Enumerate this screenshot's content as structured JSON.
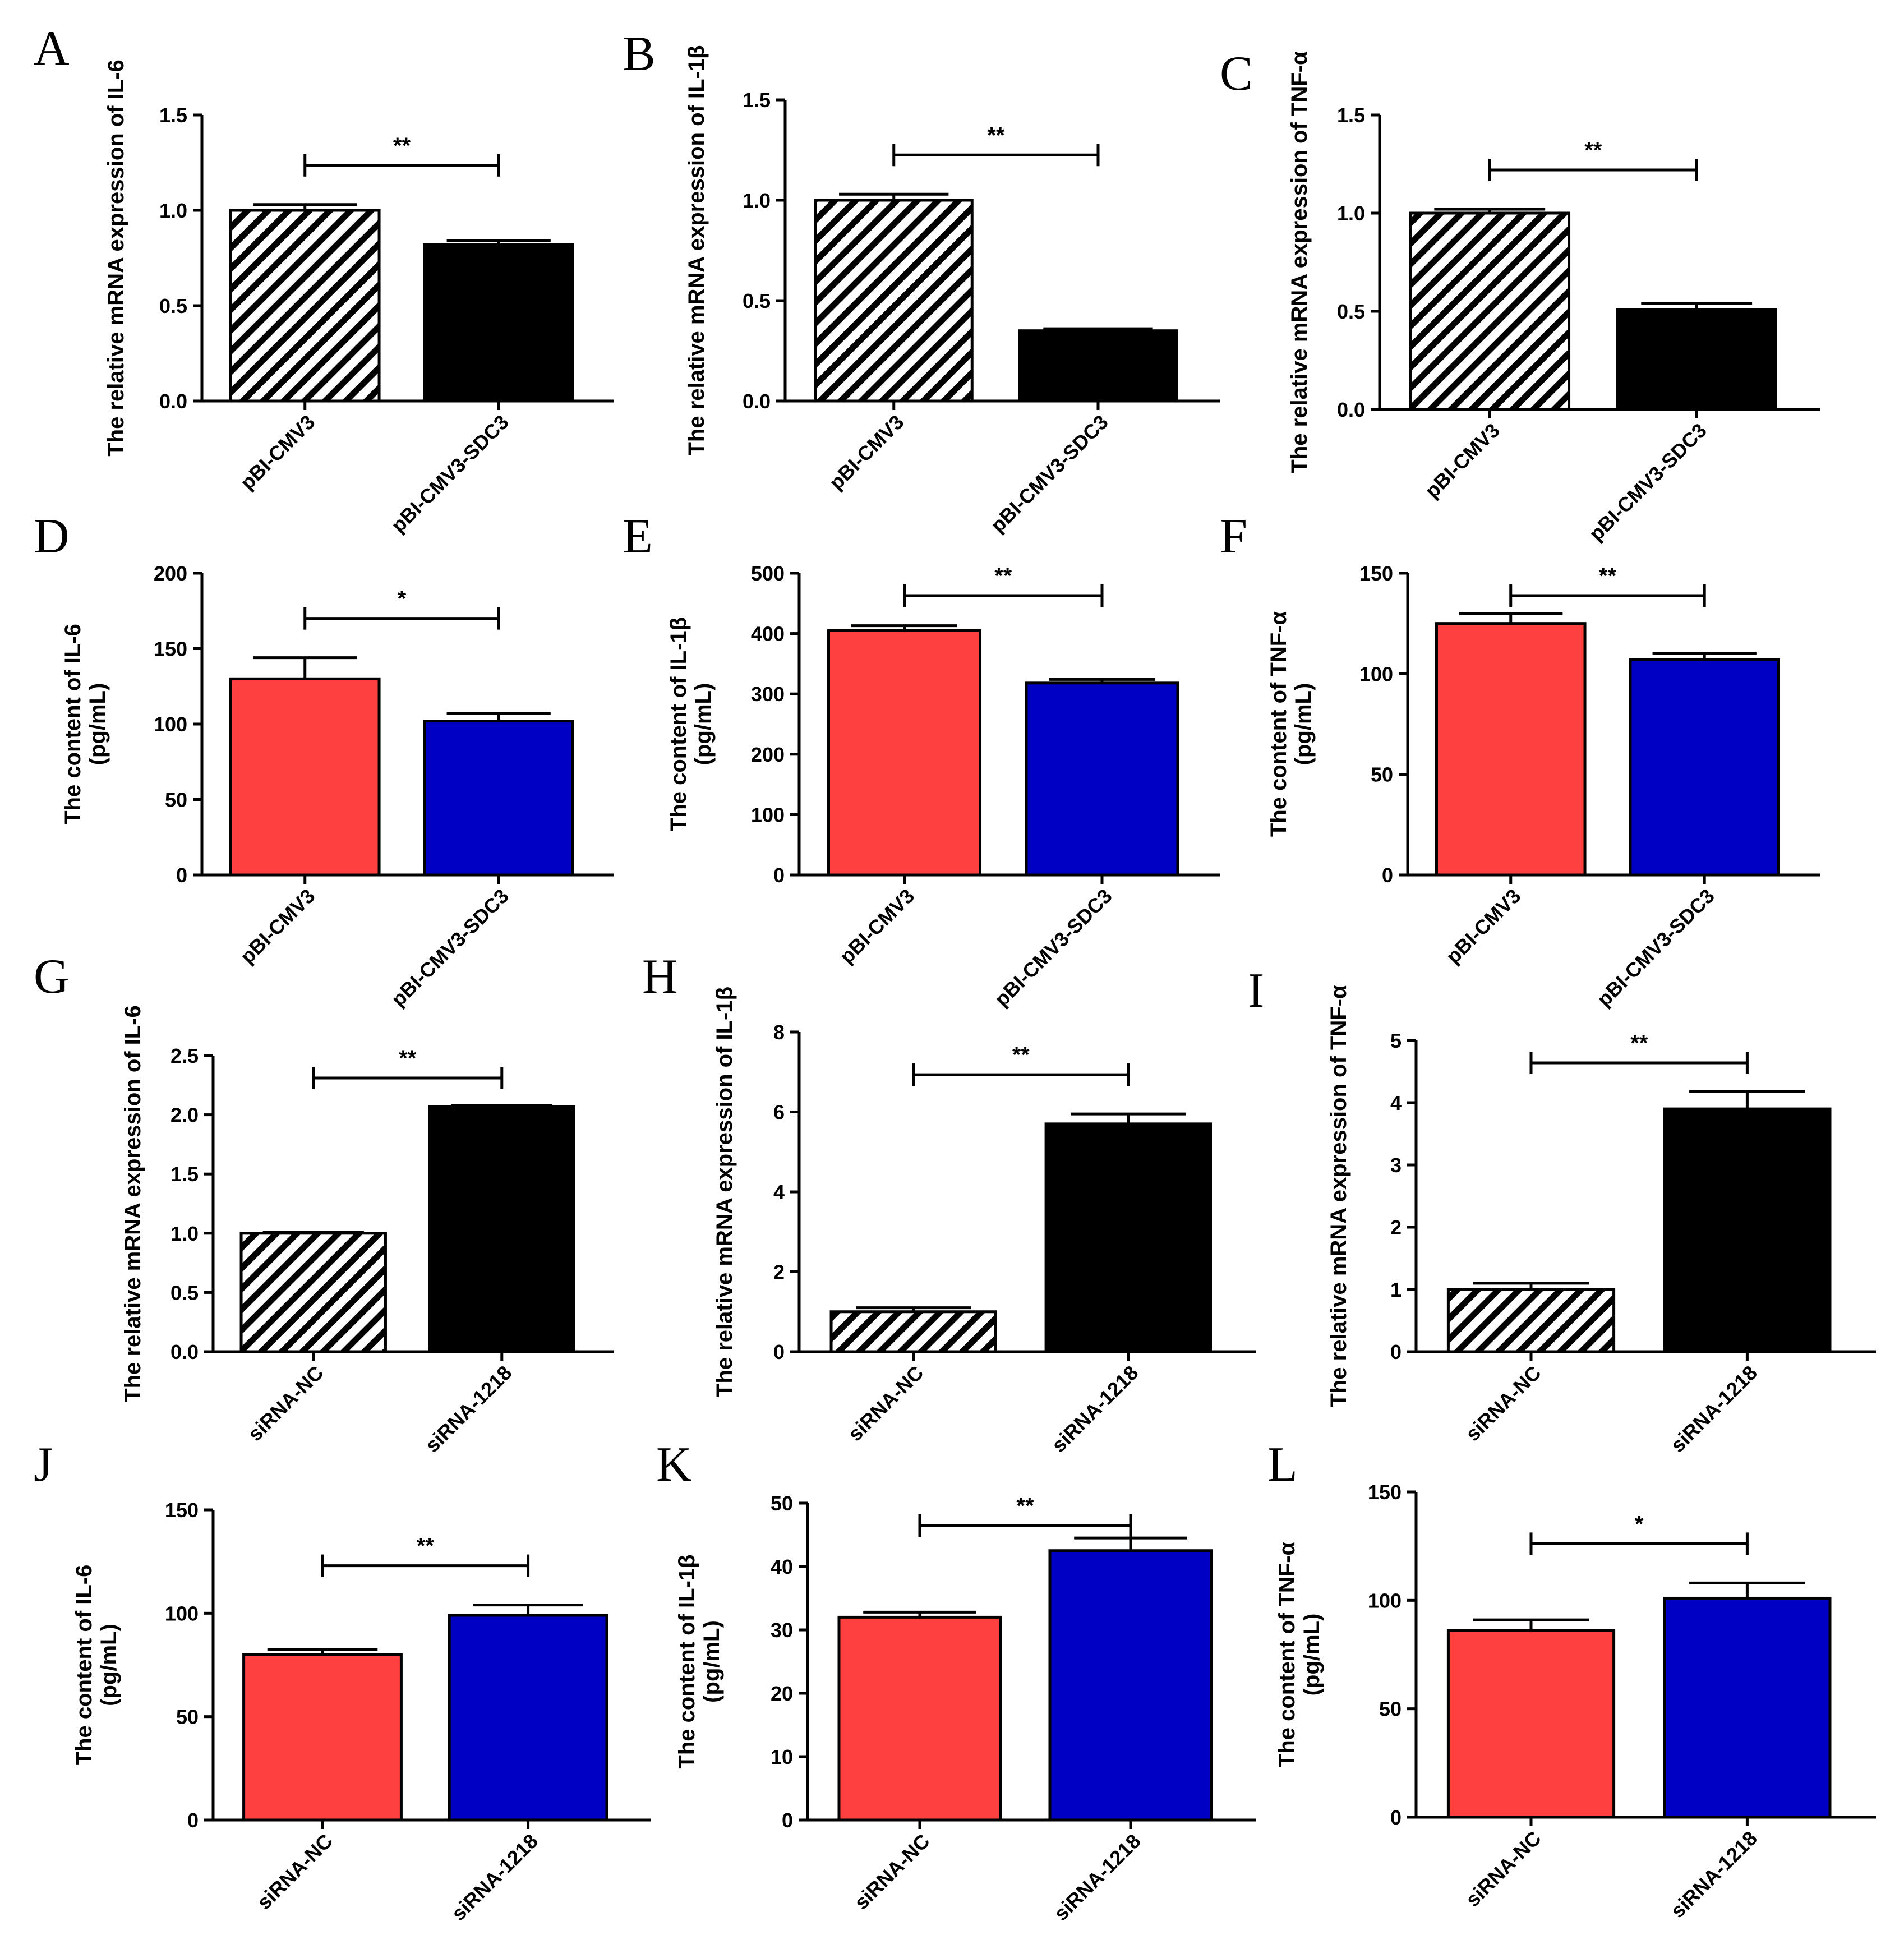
{
  "colors": {
    "red": "#ff4040",
    "blue": "#0000c4",
    "black": "#000000",
    "hatch": "#000000"
  },
  "chart_data": [
    {
      "letter": "A",
      "type": "bar",
      "ylabel": [
        "The relative mRNA expression of IL-6"
      ],
      "ylim": [
        0,
        1.5
      ],
      "ticks": [
        "0.0",
        "0.5",
        "1.0",
        "1.5"
      ],
      "categories": [
        "pBI-CMV3",
        "pBI-CMV3-SDC3"
      ],
      "values": [
        1.0,
        0.82
      ],
      "errors": [
        0.03,
        0.02
      ],
      "fills": [
        "hatch",
        "black"
      ],
      "sig": "**"
    },
    {
      "letter": "B",
      "type": "bar",
      "ylabel": [
        "The relative mRNA expression of IL-1β"
      ],
      "ylim": [
        0,
        1.5
      ],
      "ticks": [
        "0.0",
        "0.5",
        "1.0",
        "1.5"
      ],
      "categories": [
        "pBI-CMV3",
        "pBI-CMV3-SDC3"
      ],
      "values": [
        1.0,
        0.35
      ],
      "errors": [
        0.03,
        0.01
      ],
      "fills": [
        "hatch",
        "black"
      ],
      "sig": "**"
    },
    {
      "letter": "C",
      "type": "bar",
      "ylabel": [
        "The relative mRNA expression of TNF-α"
      ],
      "ylim": [
        0,
        1.5
      ],
      "ticks": [
        "0.0",
        "0.5",
        "1.0",
        "1.5"
      ],
      "categories": [
        "pBI-CMV3",
        "pBI-CMV3-SDC3"
      ],
      "values": [
        1.0,
        0.51
      ],
      "errors": [
        0.02,
        0.03
      ],
      "fills": [
        "hatch",
        "black"
      ],
      "sig": "**"
    },
    {
      "letter": "D",
      "type": "bar",
      "ylabel": [
        "The content of IL-6",
        "(pg/mL)"
      ],
      "ylim": [
        0,
        200
      ],
      "ticks": [
        "0",
        "50",
        "100",
        "150",
        "200"
      ],
      "categories": [
        "pBI-CMV3",
        "pBI-CMV3-SDC3"
      ],
      "values": [
        130,
        102
      ],
      "errors": [
        14,
        5
      ],
      "fills": [
        "red",
        "blue"
      ],
      "sig": "*"
    },
    {
      "letter": "E",
      "type": "bar",
      "ylabel": [
        "The content of IL-1β",
        "(pg/mL)"
      ],
      "ylim": [
        0,
        500
      ],
      "ticks": [
        "0",
        "100",
        "200",
        "300",
        "400",
        "500"
      ],
      "categories": [
        "pBI-CMV3",
        "pBI-CMV3-SDC3"
      ],
      "values": [
        405,
        318
      ],
      "errors": [
        8,
        6
      ],
      "fills": [
        "red",
        "blue"
      ],
      "sig": "**"
    },
    {
      "letter": "F",
      "type": "bar",
      "ylabel": [
        "The content of TNF-α",
        "(pg/mL)"
      ],
      "ylim": [
        0,
        150
      ],
      "ticks": [
        "0",
        "50",
        "100",
        "150"
      ],
      "categories": [
        "pBI-CMV3",
        "pBI-CMV3-SDC3"
      ],
      "values": [
        125,
        107
      ],
      "errors": [
        5,
        3
      ],
      "fills": [
        "red",
        "blue"
      ],
      "sig": "**"
    },
    {
      "letter": "G",
      "type": "bar",
      "ylabel": [
        "The relative mRNA expression of IL-6"
      ],
      "ylim": [
        0,
        2.5
      ],
      "ticks": [
        "0.0",
        "0.5",
        "1.0",
        "1.5",
        "2.0",
        "2.5"
      ],
      "categories": [
        "siRNA-NC",
        "siRNA-1218"
      ],
      "values": [
        1.0,
        2.07
      ],
      "errors": [
        0.01,
        0.01
      ],
      "fills": [
        "hatch",
        "black"
      ],
      "sig": "**"
    },
    {
      "letter": "H",
      "type": "bar",
      "ylabel": [
        "The relative mRNA expression of IL-1β"
      ],
      "ylim": [
        0,
        8
      ],
      "ticks": [
        "0",
        "2",
        "4",
        "6",
        "8"
      ],
      "categories": [
        "siRNA-NC",
        "siRNA-1218"
      ],
      "values": [
        1.0,
        5.7
      ],
      "errors": [
        0.1,
        0.25
      ],
      "fills": [
        "hatch",
        "black"
      ],
      "sig": "**"
    },
    {
      "letter": "I",
      "type": "bar",
      "ylabel": [
        "The relative mRNA expression of TNF-α"
      ],
      "ylim": [
        0,
        5
      ],
      "ticks": [
        "0",
        "1",
        "2",
        "3",
        "4",
        "5"
      ],
      "categories": [
        "siRNA-NC",
        "siRNA-1218"
      ],
      "values": [
        1.0,
        3.9
      ],
      "errors": [
        0.1,
        0.28
      ],
      "fills": [
        "hatch",
        "black"
      ],
      "sig": "**"
    },
    {
      "letter": "J",
      "type": "bar",
      "ylabel": [
        "The content of IL-6",
        "(pg/mL)"
      ],
      "ylim": [
        0,
        150
      ],
      "ticks": [
        "0",
        "50",
        "100",
        "150"
      ],
      "categories": [
        "siRNA-NC",
        "siRNA-1218"
      ],
      "values": [
        80,
        99
      ],
      "errors": [
        2.5,
        5
      ],
      "fills": [
        "red",
        "blue"
      ],
      "sig": "**"
    },
    {
      "letter": "K",
      "type": "bar",
      "ylabel": [
        "The content of IL-1β",
        "(pg/mL)"
      ],
      "ylim": [
        0,
        50
      ],
      "ticks": [
        "0",
        "10",
        "20",
        "30",
        "40",
        "50"
      ],
      "categories": [
        "siRNA-NC",
        "siRNA-1218"
      ],
      "values": [
        32,
        42.5
      ],
      "errors": [
        0.8,
        2
      ],
      "fills": [
        "red",
        "blue"
      ],
      "sig": "**"
    },
    {
      "letter": "L",
      "type": "bar",
      "ylabel": [
        "The content of TNF-α",
        "(pg/mL)"
      ],
      "ylim": [
        0,
        150
      ],
      "ticks": [
        "0",
        "50",
        "100",
        "150"
      ],
      "categories": [
        "siRNA-NC",
        "siRNA-1218"
      ],
      "values": [
        86,
        101
      ],
      "errors": [
        5,
        7
      ],
      "fills": [
        "red",
        "blue"
      ],
      "sig": "*"
    }
  ]
}
